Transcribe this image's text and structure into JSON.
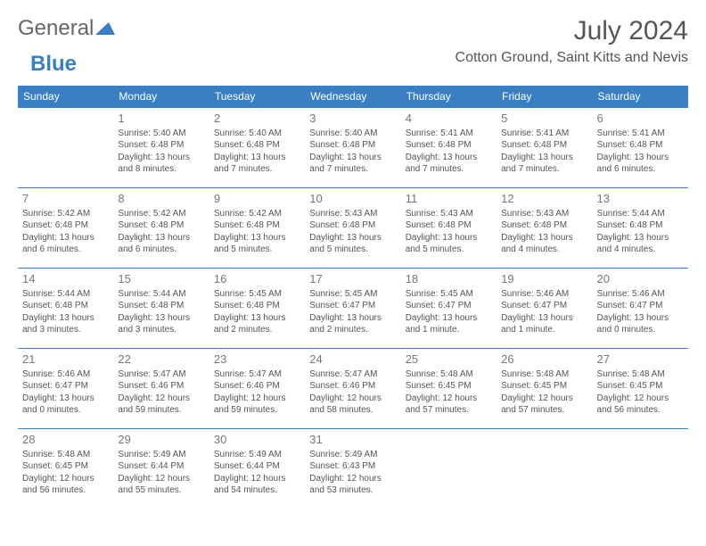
{
  "brand": {
    "part1": "General",
    "part2": "Blue"
  },
  "title": "July 2024",
  "location": "Cotton Ground, Saint Kitts and Nevis",
  "colors": {
    "accent": "#3a7fc4",
    "text": "#555555",
    "bg": "#ffffff"
  },
  "day_headers": [
    "Sunday",
    "Monday",
    "Tuesday",
    "Wednesday",
    "Thursday",
    "Friday",
    "Saturday"
  ],
  "weeks": [
    [
      null,
      {
        "n": "1",
        "sr": "Sunrise: 5:40 AM",
        "ss": "Sunset: 6:48 PM",
        "d1": "Daylight: 13 hours",
        "d2": "and 8 minutes."
      },
      {
        "n": "2",
        "sr": "Sunrise: 5:40 AM",
        "ss": "Sunset: 6:48 PM",
        "d1": "Daylight: 13 hours",
        "d2": "and 7 minutes."
      },
      {
        "n": "3",
        "sr": "Sunrise: 5:40 AM",
        "ss": "Sunset: 6:48 PM",
        "d1": "Daylight: 13 hours",
        "d2": "and 7 minutes."
      },
      {
        "n": "4",
        "sr": "Sunrise: 5:41 AM",
        "ss": "Sunset: 6:48 PM",
        "d1": "Daylight: 13 hours",
        "d2": "and 7 minutes."
      },
      {
        "n": "5",
        "sr": "Sunrise: 5:41 AM",
        "ss": "Sunset: 6:48 PM",
        "d1": "Daylight: 13 hours",
        "d2": "and 7 minutes."
      },
      {
        "n": "6",
        "sr": "Sunrise: 5:41 AM",
        "ss": "Sunset: 6:48 PM",
        "d1": "Daylight: 13 hours",
        "d2": "and 6 minutes."
      }
    ],
    [
      {
        "n": "7",
        "sr": "Sunrise: 5:42 AM",
        "ss": "Sunset: 6:48 PM",
        "d1": "Daylight: 13 hours",
        "d2": "and 6 minutes."
      },
      {
        "n": "8",
        "sr": "Sunrise: 5:42 AM",
        "ss": "Sunset: 6:48 PM",
        "d1": "Daylight: 13 hours",
        "d2": "and 6 minutes."
      },
      {
        "n": "9",
        "sr": "Sunrise: 5:42 AM",
        "ss": "Sunset: 6:48 PM",
        "d1": "Daylight: 13 hours",
        "d2": "and 5 minutes."
      },
      {
        "n": "10",
        "sr": "Sunrise: 5:43 AM",
        "ss": "Sunset: 6:48 PM",
        "d1": "Daylight: 13 hours",
        "d2": "and 5 minutes."
      },
      {
        "n": "11",
        "sr": "Sunrise: 5:43 AM",
        "ss": "Sunset: 6:48 PM",
        "d1": "Daylight: 13 hours",
        "d2": "and 5 minutes."
      },
      {
        "n": "12",
        "sr": "Sunrise: 5:43 AM",
        "ss": "Sunset: 6:48 PM",
        "d1": "Daylight: 13 hours",
        "d2": "and 4 minutes."
      },
      {
        "n": "13",
        "sr": "Sunrise: 5:44 AM",
        "ss": "Sunset: 6:48 PM",
        "d1": "Daylight: 13 hours",
        "d2": "and 4 minutes."
      }
    ],
    [
      {
        "n": "14",
        "sr": "Sunrise: 5:44 AM",
        "ss": "Sunset: 6:48 PM",
        "d1": "Daylight: 13 hours",
        "d2": "and 3 minutes."
      },
      {
        "n": "15",
        "sr": "Sunrise: 5:44 AM",
        "ss": "Sunset: 6:48 PM",
        "d1": "Daylight: 13 hours",
        "d2": "and 3 minutes."
      },
      {
        "n": "16",
        "sr": "Sunrise: 5:45 AM",
        "ss": "Sunset: 6:48 PM",
        "d1": "Daylight: 13 hours",
        "d2": "and 2 minutes."
      },
      {
        "n": "17",
        "sr": "Sunrise: 5:45 AM",
        "ss": "Sunset: 6:47 PM",
        "d1": "Daylight: 13 hours",
        "d2": "and 2 minutes."
      },
      {
        "n": "18",
        "sr": "Sunrise: 5:45 AM",
        "ss": "Sunset: 6:47 PM",
        "d1": "Daylight: 13 hours",
        "d2": "and 1 minute."
      },
      {
        "n": "19",
        "sr": "Sunrise: 5:46 AM",
        "ss": "Sunset: 6:47 PM",
        "d1": "Daylight: 13 hours",
        "d2": "and 1 minute."
      },
      {
        "n": "20",
        "sr": "Sunrise: 5:46 AM",
        "ss": "Sunset: 6:47 PM",
        "d1": "Daylight: 13 hours",
        "d2": "and 0 minutes."
      }
    ],
    [
      {
        "n": "21",
        "sr": "Sunrise: 5:46 AM",
        "ss": "Sunset: 6:47 PM",
        "d1": "Daylight: 13 hours",
        "d2": "and 0 minutes."
      },
      {
        "n": "22",
        "sr": "Sunrise: 5:47 AM",
        "ss": "Sunset: 6:46 PM",
        "d1": "Daylight: 12 hours",
        "d2": "and 59 minutes."
      },
      {
        "n": "23",
        "sr": "Sunrise: 5:47 AM",
        "ss": "Sunset: 6:46 PM",
        "d1": "Daylight: 12 hours",
        "d2": "and 59 minutes."
      },
      {
        "n": "24",
        "sr": "Sunrise: 5:47 AM",
        "ss": "Sunset: 6:46 PM",
        "d1": "Daylight: 12 hours",
        "d2": "and 58 minutes."
      },
      {
        "n": "25",
        "sr": "Sunrise: 5:48 AM",
        "ss": "Sunset: 6:45 PM",
        "d1": "Daylight: 12 hours",
        "d2": "and 57 minutes."
      },
      {
        "n": "26",
        "sr": "Sunrise: 5:48 AM",
        "ss": "Sunset: 6:45 PM",
        "d1": "Daylight: 12 hours",
        "d2": "and 57 minutes."
      },
      {
        "n": "27",
        "sr": "Sunrise: 5:48 AM",
        "ss": "Sunset: 6:45 PM",
        "d1": "Daylight: 12 hours",
        "d2": "and 56 minutes."
      }
    ],
    [
      {
        "n": "28",
        "sr": "Sunrise: 5:48 AM",
        "ss": "Sunset: 6:45 PM",
        "d1": "Daylight: 12 hours",
        "d2": "and 56 minutes."
      },
      {
        "n": "29",
        "sr": "Sunrise: 5:49 AM",
        "ss": "Sunset: 6:44 PM",
        "d1": "Daylight: 12 hours",
        "d2": "and 55 minutes."
      },
      {
        "n": "30",
        "sr": "Sunrise: 5:49 AM",
        "ss": "Sunset: 6:44 PM",
        "d1": "Daylight: 12 hours",
        "d2": "and 54 minutes."
      },
      {
        "n": "31",
        "sr": "Sunrise: 5:49 AM",
        "ss": "Sunset: 6:43 PM",
        "d1": "Daylight: 12 hours",
        "d2": "and 53 minutes."
      },
      null,
      null,
      null
    ]
  ]
}
